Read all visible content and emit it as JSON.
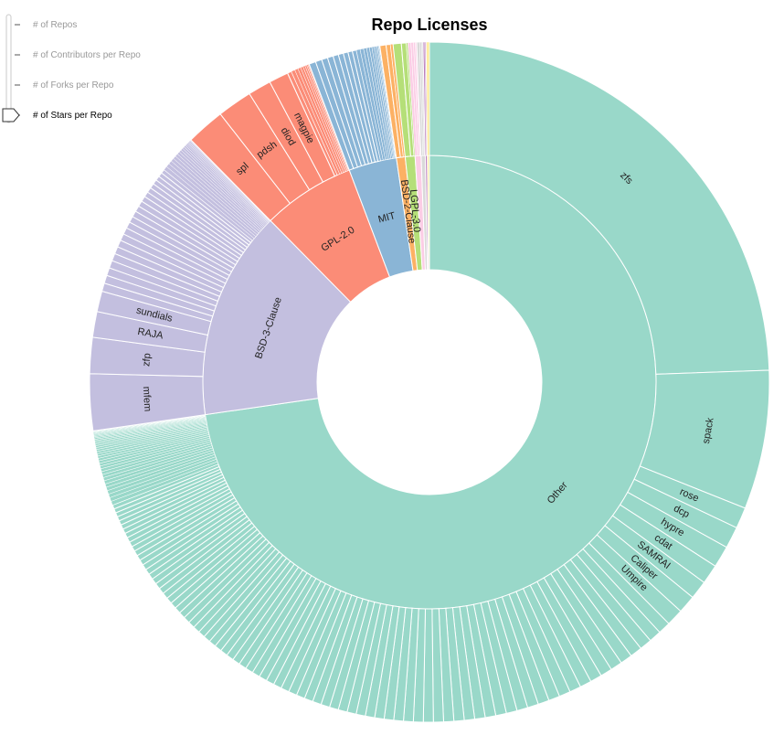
{
  "controls": {
    "options": [
      "# of Repos",
      "# of Contributors per Repo",
      "# of Forks per Repo",
      "# of Stars per Repo"
    ],
    "selected_index": 3
  },
  "chart_data": {
    "type": "sunburst",
    "title": "Repo Licenses",
    "licenses": [
      {
        "name": "Other",
        "color": "#99d8c9",
        "repos": [
          {
            "name": "zfs",
            "value": 1000
          },
          {
            "name": "spack",
            "value": 270
          },
          {
            "name": "rose",
            "value": 41
          },
          {
            "name": "dcp",
            "value": 42
          },
          {
            "name": "hypre",
            "value": 42
          },
          {
            "name": "cdat",
            "value": 38
          },
          {
            "name": "SAMRAI",
            "value": 36
          },
          {
            "name": "Caliper",
            "value": 35
          },
          {
            "name": "Umpire",
            "value": 33
          }
        ],
        "small_repos": {
          "count": 115,
          "value_from": 24,
          "value_to": 1
        }
      },
      {
        "name": "BSD-3-Clause",
        "color": "#c3bfdf",
        "repos": [
          {
            "name": "mfem",
            "value": 110
          },
          {
            "name": "zfp",
            "value": 70
          },
          {
            "name": "RAJA",
            "value": 50
          },
          {
            "name": "sundials",
            "value": 40
          }
        ],
        "small_repos": {
          "count": 40,
          "value_from": 16,
          "value_to": 1
        }
      },
      {
        "name": "GPL-2.0",
        "color": "#fb8c77",
        "repos": [
          {
            "name": "spl",
            "value": 75
          },
          {
            "name": "pdsh",
            "value": 68
          },
          {
            "name": "diod",
            "value": 45
          },
          {
            "name": "magpie",
            "value": 38
          }
        ],
        "small_repos": {
          "count": 10,
          "value_from": 8,
          "value_to": 1
        }
      },
      {
        "name": "MIT",
        "color": "#8ab5d6",
        "repos": [],
        "small_repos": {
          "count": 20,
          "value_from": 13,
          "value_to": 1
        }
      },
      {
        "name": "BSD-2-Clause",
        "color": "#fcb164",
        "repos": [],
        "small_repos": {
          "count": 3,
          "value_from": 12,
          "value_to": 5
        }
      },
      {
        "name": "LGPL-3.0",
        "color": "#b5df78",
        "repos": [],
        "small_repos": {
          "count": 3,
          "value_from": 16,
          "value_to": 3
        }
      },
      {
        "name": "",
        "color": "#fbcde5",
        "repos": [],
        "small_repos": {
          "count": 5,
          "value_from": 6,
          "value_to": 1
        }
      },
      {
        "name": "",
        "color": "#d9d9d9",
        "repos": [],
        "small_repos": {
          "count": 4,
          "value_from": 5,
          "value_to": 1
        }
      },
      {
        "name": "",
        "color": "#bc80bd",
        "repos": [],
        "small_repos": {
          "count": 3,
          "value_from": 3,
          "value_to": 1
        }
      },
      {
        "name": "",
        "color": "#ffed9f",
        "repos": [],
        "small_repos": {
          "count": 1,
          "value_from": 6,
          "value_to": 6
        }
      }
    ]
  }
}
